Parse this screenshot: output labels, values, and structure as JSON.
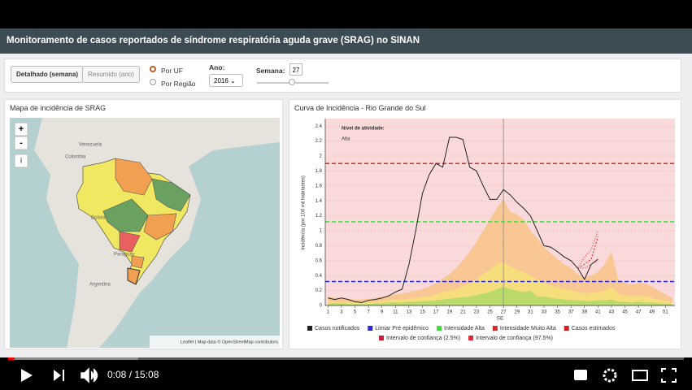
{
  "header": {
    "title": "Monitoramento de casos reportados de síndrome respiratória aguda grave (SRAG) no SINAN"
  },
  "controls": {
    "detail_button": "Detalhado (semana)",
    "summary_button": "Resumido (ano)",
    "radio_uf": "Por UF",
    "radio_region": "Por Região",
    "year_label": "Ano:",
    "year": "2016",
    "week_label": "Semana:",
    "week": 27
  },
  "map_panel": {
    "title": "Mapa de incidência de SRAG",
    "zoom_in": "+",
    "zoom_out": "-",
    "info": "i",
    "labels": [
      "Venezuela",
      "Colombia",
      "Bolivia",
      "Paraguay",
      "Argentina"
    ],
    "attribution": "Leaflet | Map data © OpenStreetMap contributors"
  },
  "chart_data": {
    "type": "line",
    "title": "Curva de Incidência - Rio Grande do Sul",
    "y_label": "Incidência (por 100 mil habitantes)",
    "x_label": "SE",
    "annotation_title": "Nível de atividade:",
    "annotation_value": "Alta",
    "x": [
      1,
      2,
      3,
      4,
      5,
      6,
      7,
      8,
      9,
      10,
      11,
      12,
      13,
      14,
      15,
      16,
      17,
      18,
      19,
      20,
      21,
      22,
      23,
      24,
      25,
      26,
      27,
      28,
      29,
      30,
      31,
      32,
      33,
      34,
      35,
      36,
      37,
      38,
      39,
      40,
      41,
      42,
      43,
      44,
      45,
      46,
      47,
      48,
      49,
      50,
      51,
      52
    ],
    "xlim": [
      0.6,
      52.4
    ],
    "xticks": [
      1,
      3,
      5,
      7,
      9,
      11,
      13,
      15,
      17,
      19,
      21,
      23,
      25,
      27,
      29,
      31,
      33,
      35,
      37,
      39,
      41,
      43,
      45,
      47,
      49,
      51
    ],
    "ylim": [
      0,
      2.5
    ],
    "yticks": [
      0,
      0.2,
      0.4,
      0.6,
      0.8,
      1,
      1.2,
      1.4,
      1.6,
      1.8,
      2,
      2.2,
      2.4
    ],
    "grid": true,
    "areas": [
      {
        "color": "#f7c48c",
        "values": [
          0.12,
          0.1,
          0.1,
          0.09,
          0.08,
          0.08,
          0.09,
          0.1,
          0.12,
          0.13,
          0.15,
          0.16,
          0.18,
          0.2,
          0.22,
          0.25,
          0.3,
          0.36,
          0.42,
          0.5,
          0.6,
          0.72,
          0.85,
          1.0,
          1.15,
          1.3,
          1.42,
          1.25,
          1.22,
          1.15,
          1.0,
          0.9,
          0.78,
          0.7,
          0.62,
          0.55,
          0.5,
          0.42,
          0.38,
          0.4,
          0.45,
          0.55,
          0.72,
          0.35,
          0.3,
          0.28,
          0.3,
          0.3,
          0.25,
          0.2,
          0.15,
          0.1
        ]
      },
      {
        "color": "#f5e07a",
        "values": [
          0.06,
          0.05,
          0.05,
          0.05,
          0.04,
          0.04,
          0.05,
          0.05,
          0.06,
          0.07,
          0.08,
          0.08,
          0.09,
          0.1,
          0.11,
          0.12,
          0.15,
          0.18,
          0.2,
          0.22,
          0.26,
          0.3,
          0.35,
          0.42,
          0.48,
          0.55,
          0.58,
          0.52,
          0.48,
          0.45,
          0.4,
          0.35,
          0.3,
          0.27,
          0.24,
          0.22,
          0.2,
          0.18,
          0.16,
          0.17,
          0.18,
          0.2,
          0.25,
          0.15,
          0.13,
          0.12,
          0.13,
          0.12,
          0.1,
          0.08,
          0.06,
          0.05
        ]
      },
      {
        "color": "#b5d96a",
        "values": [
          0.03,
          0.03,
          0.03,
          0.02,
          0.02,
          0.02,
          0.02,
          0.03,
          0.03,
          0.04,
          0.04,
          0.04,
          0.05,
          0.05,
          0.06,
          0.06,
          0.07,
          0.08,
          0.09,
          0.1,
          0.11,
          0.12,
          0.14,
          0.16,
          0.18,
          0.22,
          0.25,
          0.22,
          0.2,
          0.18,
          0.2,
          0.12,
          0.12,
          0.1,
          0.09,
          0.08,
          0.07,
          0.07,
          0.06,
          0.06,
          0.07,
          0.07,
          0.08,
          0.05,
          0.05,
          0.04,
          0.05,
          0.04,
          0.04,
          0.03,
          0.03,
          0.02
        ]
      }
    ],
    "thresholds": [
      {
        "name": "Limiar Pré epidêmico",
        "color": "#2a2ad0",
        "value": 0.32
      },
      {
        "name": "Intensidade Alta",
        "color": "#3ddc3d",
        "value": 1.12
      },
      {
        "name": "Intensidade Muito Alta",
        "color": "#d42a2a",
        "value": 1.9
      }
    ],
    "series": [
      {
        "name": "Casos notificados",
        "color": "#222222",
        "dash": "none",
        "values": [
          0.1,
          0.08,
          0.1,
          0.08,
          0.05,
          0.04,
          0.07,
          0.08,
          0.1,
          0.13,
          0.18,
          0.22,
          0.55,
          1.0,
          1.5,
          1.75,
          1.9,
          1.85,
          2.25,
          2.25,
          2.22,
          1.85,
          1.8,
          1.6,
          1.42,
          1.42,
          1.55,
          1.48,
          1.38,
          1.3,
          1.2,
          1.0,
          0.8,
          0.78,
          0.72,
          0.65,
          0.6,
          0.5,
          0.35,
          0.55,
          0.62,
          null,
          null,
          null,
          null,
          null,
          null,
          null,
          null,
          null,
          null,
          null
        ]
      },
      {
        "name": "Casos estimados",
        "color": "#d42020",
        "dash": "2,2",
        "values": [
          null,
          null,
          null,
          null,
          null,
          null,
          null,
          null,
          null,
          null,
          null,
          null,
          null,
          null,
          null,
          null,
          null,
          null,
          null,
          null,
          null,
          null,
          null,
          null,
          null,
          null,
          null,
          null,
          null,
          null,
          null,
          null,
          null,
          null,
          null,
          null,
          null,
          0.5,
          0.55,
          0.62,
          0.92,
          null,
          null,
          null,
          null,
          null,
          null,
          null,
          null,
          null,
          null,
          null
        ]
      },
      {
        "name": "Intervalo de confiança (2.5%)",
        "color": "#c41e3a",
        "dash": "1,2",
        "values": [
          null,
          null,
          null,
          null,
          null,
          null,
          null,
          null,
          null,
          null,
          null,
          null,
          null,
          null,
          null,
          null,
          null,
          null,
          null,
          null,
          null,
          null,
          null,
          null,
          null,
          null,
          null,
          null,
          null,
          null,
          null,
          null,
          null,
          null,
          null,
          null,
          null,
          0.5,
          0.5,
          0.55,
          0.6,
          null,
          null,
          null,
          null,
          null,
          null,
          null,
          null,
          null,
          null,
          null
        ]
      },
      {
        "name": "Intervalo de confiança (97.5%)",
        "color": "#e0263a",
        "dash": "1,2",
        "values": [
          null,
          null,
          null,
          null,
          null,
          null,
          null,
          null,
          null,
          null,
          null,
          null,
          null,
          null,
          null,
          null,
          null,
          null,
          null,
          null,
          null,
          null,
          null,
          null,
          null,
          null,
          null,
          null,
          null,
          null,
          null,
          null,
          null,
          null,
          null,
          null,
          null,
          0.5,
          0.65,
          0.75,
          1.0,
          null,
          null,
          null,
          null,
          null,
          null,
          null,
          null,
          null,
          null,
          null
        ]
      }
    ]
  },
  "player": {
    "time": "0:08 / 15:08"
  }
}
